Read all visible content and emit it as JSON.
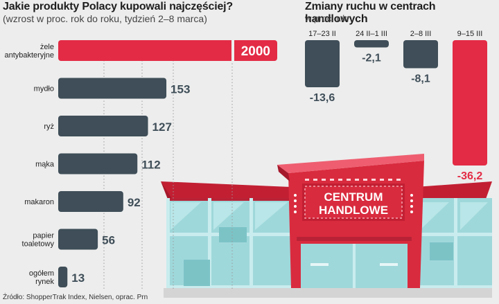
{
  "left_chart": {
    "title": "Jakie produkty Polacy kupowali najczęściej?",
    "subtitle": "(wzrost w proc. rok do roku, tydzień 2–8 marca)"
  },
  "right_chart": {
    "title": "Zmiany ruchu w centrach handlowych",
    "subtitle": "w proc. r./r."
  },
  "illustration": {
    "sign_line1": "CENTRUM",
    "sign_line2": "HANDLOWE"
  },
  "source": "Źródło: ShopperTrak Index, Nielsen, oprac. Prn",
  "colors": {
    "red": "#e32b45",
    "dark": "#3f4e58",
    "building": "#d92b3e",
    "glass": "#8fd3d6"
  },
  "chart_data": [
    {
      "type": "bar",
      "orientation": "horizontal",
      "title": "Jakie produkty Polacy kupowali najczęściej?",
      "subtitle": "(wzrost w proc. rok do roku, tydzień 2–8 marca)",
      "categories": [
        [
          "żele",
          "antybakteryjne"
        ],
        [
          "mydło"
        ],
        [
          "ryż"
        ],
        [
          "mąka"
        ],
        [
          "makaron"
        ],
        [
          "papier",
          "toaletowy"
        ],
        [
          "ogółem",
          "rynek"
        ]
      ],
      "values": [
        2000,
        153,
        127,
        112,
        92,
        56,
        13
      ],
      "value_labels": [
        "2000",
        "153",
        "127",
        "112",
        "92",
        "56",
        "13"
      ],
      "highlight_index": 0,
      "axis_break": true,
      "grid": true
    },
    {
      "type": "bar",
      "orientation": "vertical",
      "title": "Zmiany ruchu w centrach handlowych",
      "subtitle": "w proc. r./r.",
      "categories": [
        "17–23 II",
        "24 II–1 III",
        "2–8 III",
        "9–15 III"
      ],
      "values": [
        -13.6,
        -2.1,
        -8.1,
        -36.2
      ],
      "value_labels": [
        "-13,6",
        "-2,1",
        "-8,1",
        "-36,2"
      ],
      "highlight_index": 3
    }
  ]
}
